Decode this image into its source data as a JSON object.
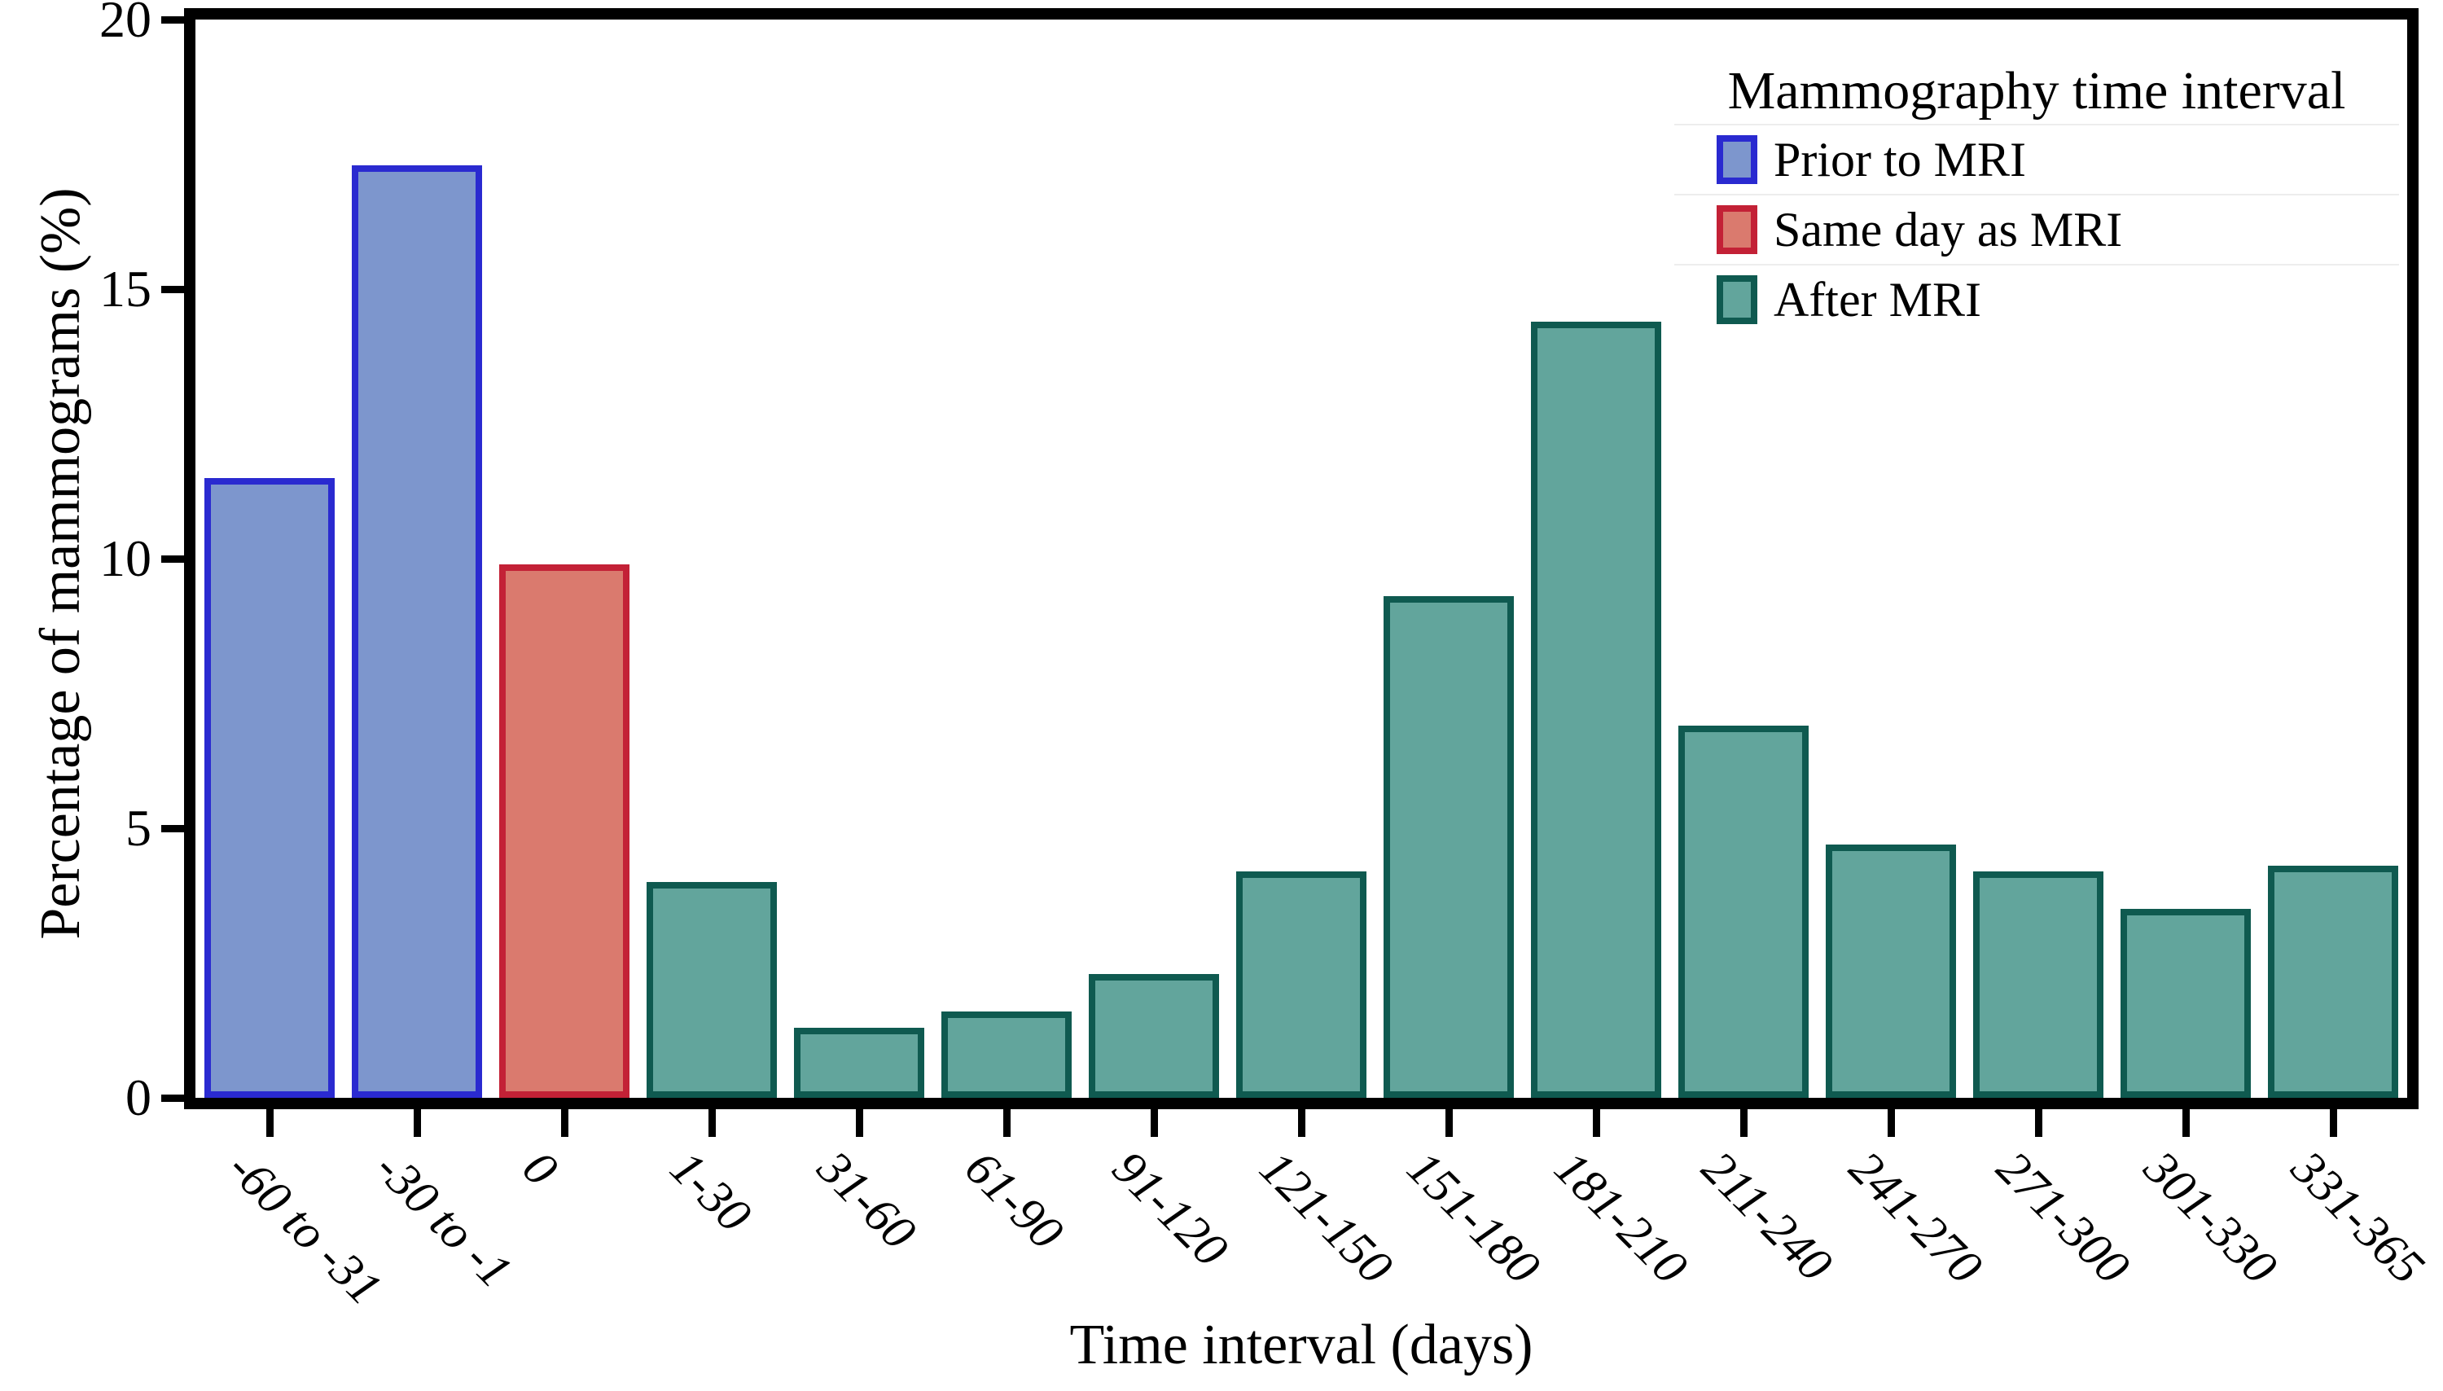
{
  "chart_data": {
    "type": "bar",
    "title": "",
    "xlabel": "Time interval (days)",
    "ylabel": "Percentage of mammograms (%)",
    "ylim": [
      0,
      20
    ],
    "yticks": [
      0,
      5,
      10,
      15,
      20
    ],
    "grid": false,
    "legend_position": "upper right",
    "categories": [
      "-60 to -31",
      "-30 to -1",
      "0",
      "1-30",
      "31-60",
      "61-90",
      "91-120",
      "121-150",
      "151-180",
      "181-210",
      "211-240",
      "241-270",
      "271-300",
      "301-330",
      "331-365"
    ],
    "values": [
      11.5,
      17.3,
      9.9,
      4.0,
      1.3,
      1.6,
      2.3,
      4.2,
      9.3,
      14.4,
      6.9,
      4.7,
      4.2,
      3.5,
      4.3
    ],
    "bar_groups": [
      "Prior to MRI",
      "Prior to MRI",
      "Same day as MRI",
      "After MRI",
      "After MRI",
      "After MRI",
      "After MRI",
      "After MRI",
      "After MRI",
      "After MRI",
      "After MRI",
      "After MRI",
      "After MRI",
      "After MRI",
      "After MRI"
    ],
    "group_colors": {
      "Prior to MRI": {
        "fill": "#7d96cd",
        "border": "#2a2ad0"
      },
      "Same day as MRI": {
        "fill": "#da7a6e",
        "border": "#c32136"
      },
      "After MRI": {
        "fill": "#62a59c",
        "border": "#0f5a50"
      }
    }
  },
  "legend": {
    "title": "Mammography time interval",
    "items": [
      {
        "label": "Prior to MRI",
        "fill": "#7d96cd",
        "border": "#2a2ad0"
      },
      {
        "label": "Same day as MRI",
        "fill": "#da7a6e",
        "border": "#c32136"
      },
      {
        "label": "After MRI",
        "fill": "#62a59c",
        "border": "#0f5a50"
      }
    ]
  },
  "axis_color": "#000000"
}
